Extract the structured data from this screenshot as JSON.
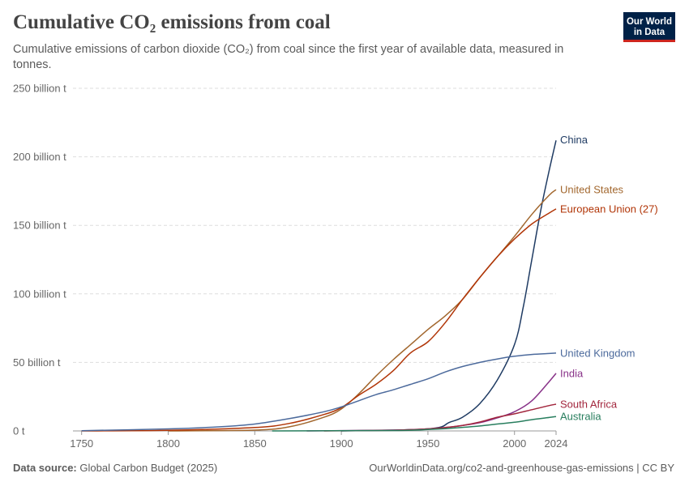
{
  "header": {
    "title": "Cumulative CO₂ emissions from coal",
    "subtitle": "Cumulative emissions of carbon dioxide (CO₂) from coal since the first year of available data, measured in tonnes."
  },
  "logo": {
    "line1": "Our World",
    "line2": "in Data"
  },
  "footer": {
    "source_label": "Data source:",
    "source_value": "Global Carbon Budget (2025)",
    "url_license": "OurWorldinData.org/co2-and-greenhouse-gas-emissions | CC BY"
  },
  "chart_data": {
    "type": "line",
    "x_ticks": [
      1750,
      1800,
      1850,
      1900,
      1950,
      2000,
      2024
    ],
    "y_ticks": [
      {
        "value": 0,
        "label": "0 t"
      },
      {
        "value": 50,
        "label": "50 billion t"
      },
      {
        "value": 100,
        "label": "100 billion t"
      },
      {
        "value": 150,
        "label": "150 billion t"
      },
      {
        "value": 200,
        "label": "200 billion t"
      },
      {
        "value": 250,
        "label": "250 billion t"
      }
    ],
    "xlim": [
      1745,
      2024
    ],
    "ylim": [
      0,
      250
    ],
    "y_unit": "billion t",
    "grid": true,
    "legend": "line-end labels",
    "series": [
      {
        "name": "China",
        "color": "#1f3b63",
        "points": [
          [
            1900,
            0
          ],
          [
            1930,
            0.6
          ],
          [
            1950,
            1.5
          ],
          [
            1958,
            3
          ],
          [
            1962,
            6
          ],
          [
            1970,
            10
          ],
          [
            1980,
            20
          ],
          [
            1990,
            37
          ],
          [
            2000,
            63
          ],
          [
            2005,
            90
          ],
          [
            2010,
            125
          ],
          [
            2015,
            160
          ],
          [
            2020,
            190
          ],
          [
            2024,
            212
          ]
        ]
      },
      {
        "name": "United States",
        "color": "#a2672e",
        "points": [
          [
            1800,
            0
          ],
          [
            1850,
            0.6
          ],
          [
            1870,
            3
          ],
          [
            1890,
            10
          ],
          [
            1900,
            16
          ],
          [
            1910,
            27
          ],
          [
            1920,
            40
          ],
          [
            1930,
            52
          ],
          [
            1940,
            63
          ],
          [
            1950,
            74
          ],
          [
            1960,
            84
          ],
          [
            1970,
            96
          ],
          [
            1980,
            112
          ],
          [
            1990,
            127
          ],
          [
            2000,
            142
          ],
          [
            2010,
            158
          ],
          [
            2020,
            172
          ],
          [
            2024,
            176
          ]
        ]
      },
      {
        "name": "European Union (27)",
        "color": "#b13507",
        "points": [
          [
            1750,
            0
          ],
          [
            1800,
            0.4
          ],
          [
            1850,
            2.5
          ],
          [
            1870,
            5.5
          ],
          [
            1890,
            12
          ],
          [
            1900,
            17
          ],
          [
            1910,
            26
          ],
          [
            1920,
            34
          ],
          [
            1930,
            44
          ],
          [
            1940,
            57
          ],
          [
            1950,
            65
          ],
          [
            1960,
            79
          ],
          [
            1970,
            96
          ],
          [
            1980,
            112
          ],
          [
            1990,
            127
          ],
          [
            2000,
            140
          ],
          [
            2010,
            151
          ],
          [
            2020,
            159
          ],
          [
            2024,
            162
          ]
        ]
      },
      {
        "name": "United Kingdom",
        "color": "#4c6a9c",
        "points": [
          [
            1750,
            0.2
          ],
          [
            1800,
            1.5
          ],
          [
            1830,
            3
          ],
          [
            1850,
            5
          ],
          [
            1870,
            9
          ],
          [
            1890,
            14
          ],
          [
            1900,
            17.5
          ],
          [
            1910,
            22
          ],
          [
            1920,
            26.5
          ],
          [
            1930,
            30
          ],
          [
            1940,
            34
          ],
          [
            1950,
            38
          ],
          [
            1960,
            43
          ],
          [
            1970,
            47
          ],
          [
            1980,
            50
          ],
          [
            1990,
            52.5
          ],
          [
            2000,
            54.5
          ],
          [
            2010,
            55.8
          ],
          [
            2020,
            56.5
          ],
          [
            2024,
            56.8
          ]
        ]
      },
      {
        "name": "India",
        "color": "#883288",
        "points": [
          [
            1880,
            0
          ],
          [
            1930,
            0.6
          ],
          [
            1950,
            1.5
          ],
          [
            1960,
            2.5
          ],
          [
            1970,
            4
          ],
          [
            1980,
            6
          ],
          [
            1990,
            9.5
          ],
          [
            2000,
            14
          ],
          [
            2010,
            22
          ],
          [
            2020,
            36
          ],
          [
            2024,
            42
          ]
        ]
      },
      {
        "name": "South Africa",
        "color": "#a2263d",
        "points": [
          [
            1890,
            0
          ],
          [
            1930,
            0.5
          ],
          [
            1950,
            1.5
          ],
          [
            1960,
            2.5
          ],
          [
            1970,
            4
          ],
          [
            1980,
            6.5
          ],
          [
            1990,
            10
          ],
          [
            2000,
            12.5
          ],
          [
            2010,
            15.5
          ],
          [
            2020,
            18.5
          ],
          [
            2024,
            19.5
          ]
        ]
      },
      {
        "name": "Australia",
        "color": "#287e5e",
        "points": [
          [
            1860,
            0
          ],
          [
            1930,
            0.3
          ],
          [
            1950,
            1
          ],
          [
            1960,
            1.6
          ],
          [
            1970,
            2.6
          ],
          [
            1980,
            3.6
          ],
          [
            1990,
            5
          ],
          [
            2000,
            6.3
          ],
          [
            2010,
            8.2
          ],
          [
            2020,
            9.8
          ],
          [
            2024,
            10.5
          ]
        ]
      }
    ]
  }
}
